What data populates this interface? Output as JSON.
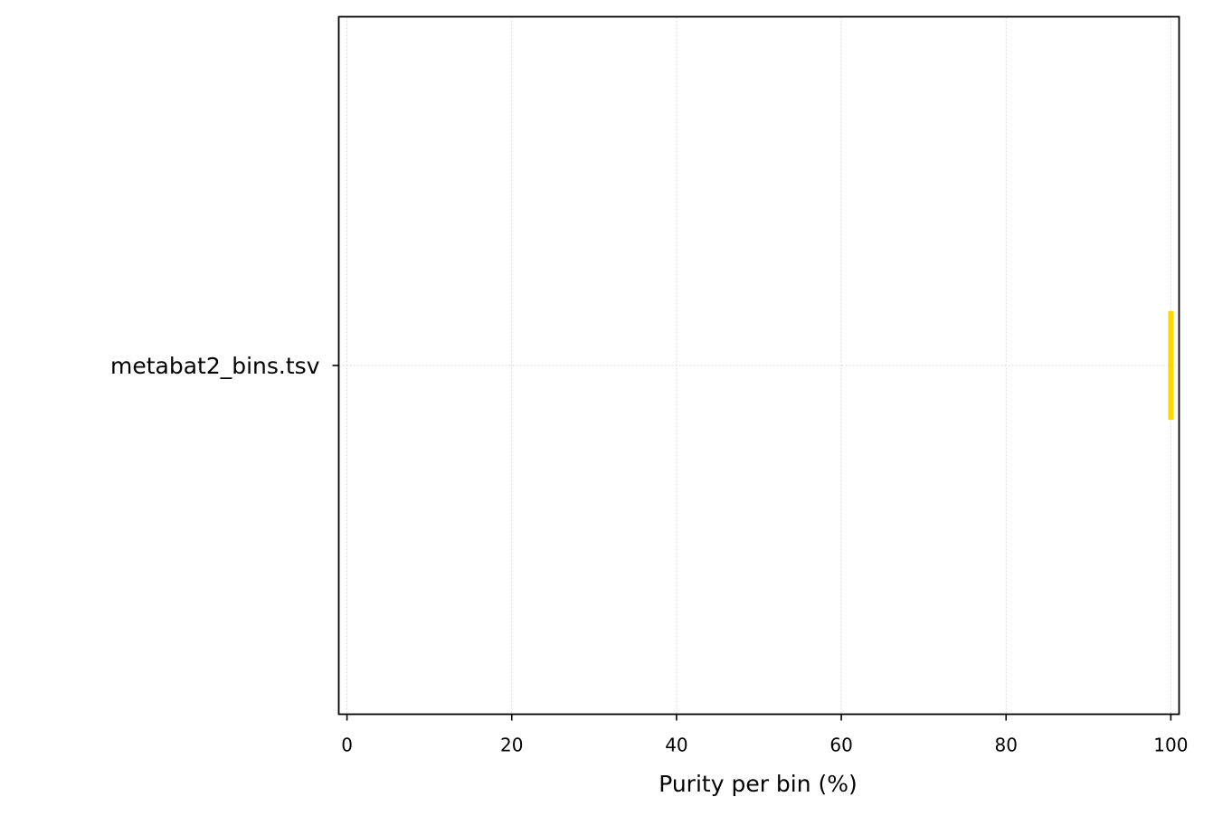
{
  "chart_data": {
    "type": "box",
    "title": "",
    "xlabel": "Purity per bin (%)",
    "ylabel": "",
    "xlim": [
      -1,
      101
    ],
    "xticks": [
      0,
      20,
      40,
      60,
      80,
      100
    ],
    "xtick_labels": [
      "0",
      "20",
      "40",
      "60",
      "80",
      "100"
    ],
    "categories": [
      "metabat2_bins.tsv"
    ],
    "series": [
      {
        "category": "metabat2_bins.tsv",
        "min": 100,
        "q1": 100,
        "median": 100,
        "q3": 100,
        "max": 100,
        "color": "#FFD700"
      }
    ],
    "grid": true
  }
}
